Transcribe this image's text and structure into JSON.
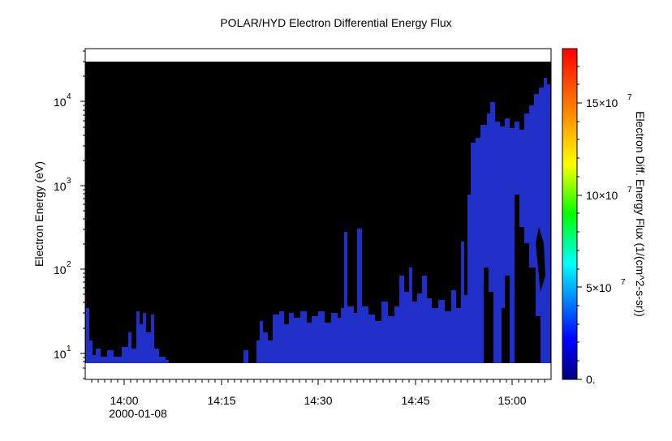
{
  "chart_data": {
    "type": "heatmap",
    "title": "POLAR/HYD  Electron Differential Energy Flux",
    "ylabel": "Electron Energy (eV)",
    "colorbar_label": "Electron Diff. Energy Flux (1/(cm^2-s-sr))",
    "x_ticks": [
      "14:00",
      "14:15",
      "14:30",
      "14:45",
      "15:00"
    ],
    "x_date_label": "2000-01-08",
    "y_ticks": [
      "10",
      "10",
      "10",
      "10"
    ],
    "y_tick_exponents": [
      "1",
      "2",
      "3",
      "4"
    ],
    "colorbar_ticks": [
      {
        "value": 0,
        "label": "0."
      },
      {
        "value": 50000000,
        "label": "5×10",
        "exp": "7"
      },
      {
        "value": 100000000,
        "label": "10×10",
        "exp": "7"
      },
      {
        "value": 150000000,
        "label": "15×10",
        "exp": "7"
      }
    ],
    "colorbar_range": [
      0,
      180000000
    ],
    "colorscale": [
      "#000080",
      "#0000ff",
      "#00ffff",
      "#00ff00",
      "#ffff00",
      "#ff8000",
      "#ff0000"
    ],
    "background_color": "#000000",
    "signal_color": "#1a2bd6"
  }
}
